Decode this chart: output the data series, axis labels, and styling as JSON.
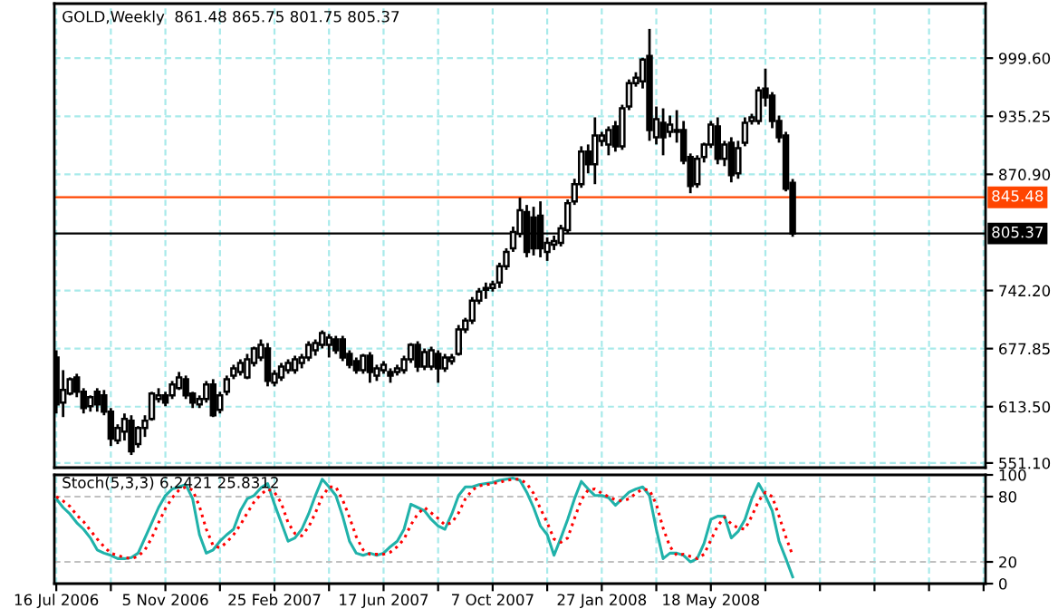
{
  "chart_data": [
    {
      "type": "candlestick",
      "title": "GOLD,Weekly  861.48 865.75 801.75 805.37",
      "x": [
        "2006-07-16",
        "2006-07-23",
        "2006-07-30",
        "2006-08-06",
        "2006-08-13",
        "2006-08-20",
        "2006-08-27",
        "2006-09-03",
        "2006-09-10",
        "2006-09-17",
        "2006-09-24",
        "2006-10-01",
        "2006-10-08",
        "2006-10-15",
        "2006-10-22",
        "2006-10-29",
        "2006-11-05",
        "2006-11-12",
        "2006-11-19",
        "2006-11-26",
        "2006-12-03",
        "2006-12-10",
        "2006-12-17",
        "2006-12-24",
        "2006-12-31",
        "2007-01-07",
        "2007-01-14",
        "2007-01-21",
        "2007-01-28",
        "2007-02-04",
        "2007-02-11",
        "2007-02-18",
        "2007-02-25",
        "2007-03-04",
        "2007-03-11",
        "2007-03-18",
        "2007-03-25",
        "2007-04-01",
        "2007-04-08",
        "2007-04-15",
        "2007-04-22",
        "2007-04-29",
        "2007-05-06",
        "2007-05-13",
        "2007-05-20",
        "2007-05-27",
        "2007-06-03",
        "2007-06-10",
        "2007-06-17",
        "2007-06-24",
        "2007-07-01",
        "2007-07-08",
        "2007-07-15",
        "2007-07-22",
        "2007-07-29",
        "2007-08-05",
        "2007-08-12",
        "2007-08-19",
        "2007-08-26",
        "2007-09-02",
        "2007-09-09",
        "2007-09-16",
        "2007-09-23",
        "2007-09-30",
        "2007-10-07",
        "2007-10-14",
        "2007-10-21",
        "2007-10-28",
        "2007-11-04",
        "2007-11-11",
        "2007-11-18",
        "2007-11-25",
        "2007-12-02",
        "2007-12-09",
        "2007-12-16",
        "2007-12-23",
        "2007-12-30",
        "2008-01-06",
        "2008-01-13",
        "2008-01-20",
        "2008-01-27",
        "2008-02-03",
        "2008-02-10",
        "2008-02-17",
        "2008-02-24",
        "2008-03-02",
        "2008-03-09",
        "2008-03-16",
        "2008-03-23",
        "2008-03-30",
        "2008-04-06",
        "2008-04-13",
        "2008-04-20",
        "2008-04-27",
        "2008-05-04",
        "2008-05-11",
        "2008-05-18",
        "2008-05-25",
        "2008-06-01",
        "2008-06-08",
        "2008-06-15",
        "2008-06-22",
        "2008-06-29",
        "2008-07-06",
        "2008-07-13",
        "2008-07-20",
        "2008-07-27",
        "2008-08-03",
        "2008-08-10"
      ],
      "ohlc": [
        [
          668,
          676,
          606,
          616
        ],
        [
          618,
          654,
          602,
          632
        ],
        [
          628,
          646,
          626,
          644
        ],
        [
          646,
          650,
          624,
          630
        ],
        [
          630,
          634,
          606,
          612
        ],
        [
          614,
          626,
          608,
          624
        ],
        [
          630,
          634,
          608,
          616
        ],
        [
          626,
          632,
          604,
          608
        ],
        [
          608,
          612,
          570,
          578
        ],
        [
          576,
          594,
          572,
          590
        ],
        [
          586,
          606,
          576,
          600
        ],
        [
          598,
          604,
          560,
          564
        ],
        [
          572,
          592,
          568,
          590
        ],
        [
          590,
          604,
          580,
          598
        ],
        [
          600,
          630,
          598,
          628
        ],
        [
          622,
          634,
          618,
          626
        ],
        [
          626,
          630,
          614,
          618
        ],
        [
          626,
          642,
          622,
          638
        ],
        [
          634,
          652,
          632,
          646
        ],
        [
          644,
          648,
          622,
          626
        ],
        [
          628,
          630,
          612,
          618
        ],
        [
          616,
          626,
          612,
          622
        ],
        [
          622,
          642,
          618,
          638
        ],
        [
          638,
          644,
          602,
          604
        ],
        [
          610,
          630,
          606,
          626
        ],
        [
          630,
          648,
          626,
          644
        ],
        [
          648,
          660,
          644,
          656
        ],
        [
          652,
          666,
          648,
          662
        ],
        [
          646,
          672,
          644,
          666
        ],
        [
          662,
          680,
          658,
          678
        ],
        [
          668,
          688,
          664,
          682
        ],
        [
          678,
          684,
          636,
          642
        ],
        [
          640,
          654,
          636,
          650
        ],
        [
          646,
          662,
          642,
          658
        ],
        [
          654,
          666,
          650,
          662
        ],
        [
          654,
          670,
          650,
          666
        ],
        [
          662,
          672,
          656,
          668
        ],
        [
          668,
          686,
          664,
          682
        ],
        [
          676,
          688,
          670,
          684
        ],
        [
          682,
          698,
          678,
          695
        ],
        [
          682,
          694,
          668,
          690
        ],
        [
          688,
          692,
          672,
          676
        ],
        [
          688,
          692,
          664,
          668
        ],
        [
          672,
          676,
          656,
          660
        ],
        [
          664,
          668,
          650,
          654
        ],
        [
          654,
          672,
          650,
          670
        ],
        [
          670,
          674,
          640,
          652
        ],
        [
          648,
          660,
          642,
          656
        ],
        [
          654,
          664,
          650,
          660
        ],
        [
          652,
          656,
          640,
          648
        ],
        [
          652,
          660,
          648,
          656
        ],
        [
          654,
          670,
          650,
          666
        ],
        [
          666,
          684,
          662,
          682
        ],
        [
          682,
          686,
          652,
          658
        ],
        [
          658,
          678,
          654,
          674
        ],
        [
          658,
          680,
          654,
          676
        ],
        [
          672,
          676,
          640,
          656
        ],
        [
          656,
          672,
          652,
          668
        ],
        [
          664,
          672,
          660,
          668
        ],
        [
          672,
          704,
          670,
          699
        ],
        [
          699,
          712,
          695,
          709
        ],
        [
          709,
          735,
          705,
          731
        ],
        [
          731,
          745,
          727,
          741
        ],
        [
          743,
          751,
          733,
          745
        ],
        [
          745,
          753,
          741,
          749
        ],
        [
          751,
          773,
          745,
          769
        ],
        [
          769,
          789,
          765,
          785
        ],
        [
          789,
          813,
          785,
          807
        ],
        [
          805,
          845,
          801,
          831
        ],
        [
          829,
          837,
          779,
          785
        ],
        [
          823,
          835,
          781,
          789
        ],
        [
          825,
          841,
          779,
          789
        ],
        [
          785,
          801,
          775,
          795
        ],
        [
          793,
          803,
          787,
          797
        ],
        [
          795,
          815,
          791,
          811
        ],
        [
          809,
          843,
          805,
          839
        ],
        [
          841,
          866,
          837,
          860
        ],
        [
          860,
          902,
          856,
          896
        ],
        [
          896,
          904,
          872,
          882
        ],
        [
          882,
          934,
          860,
          914
        ],
        [
          908,
          918,
          902,
          914
        ],
        [
          904,
          924,
          892,
          920
        ],
        [
          924,
          930,
          896,
          902
        ],
        [
          902,
          948,
          898,
          944
        ],
        [
          946,
          976,
          942,
          972
        ],
        [
          972,
          984,
          968,
          978
        ],
        [
          974,
          1000,
          966,
          998
        ],
        [
          1002,
          1032,
          908,
          920
        ],
        [
          912,
          946,
          904,
          932
        ],
        [
          928,
          944,
          892,
          912
        ],
        [
          918,
          936,
          912,
          926
        ],
        [
          918,
          942,
          906,
          920
        ],
        [
          920,
          930,
          882,
          886
        ],
        [
          890,
          894,
          850,
          858
        ],
        [
          860,
          892,
          856,
          888
        ],
        [
          890,
          906,
          884,
          904
        ],
        [
          904,
          930,
          900,
          926
        ],
        [
          924,
          934,
          882,
          888
        ],
        [
          888,
          908,
          880,
          904
        ],
        [
          906,
          912,
          862,
          870
        ],
        [
          872,
          908,
          866,
          900
        ],
        [
          906,
          934,
          902,
          928
        ],
        [
          930,
          938,
          926,
          934
        ],
        [
          930,
          968,
          926,
          964
        ],
        [
          966,
          988,
          946,
          956
        ],
        [
          958,
          962,
          922,
          930
        ],
        [
          930,
          936,
          906,
          912
        ],
        [
          914,
          918,
          852,
          855
        ],
        [
          861.48,
          865.75,
          801.75,
          805.37
        ]
      ],
      "xlim": [
        "2006-07-14",
        "2009-02-24"
      ],
      "xticks": [
        {
          "value": "2006-07-16",
          "label": null
        },
        {
          "value": "2006-09-10",
          "label": null
        },
        {
          "value": "2006-11-05",
          "label": null
        },
        {
          "value": "2006-12-31",
          "label": null
        },
        {
          "value": "2007-02-25",
          "label": null
        },
        {
          "value": "2007-04-22",
          "label": null
        },
        {
          "value": "2007-06-17",
          "label": null
        },
        {
          "value": "2007-08-12",
          "label": null
        },
        {
          "value": "2007-10-07",
          "label": null
        },
        {
          "value": "2007-12-02",
          "label": null
        },
        {
          "value": "2008-01-27",
          "label": null
        },
        {
          "value": "2008-03-23",
          "label": null
        },
        {
          "value": "2008-05-18",
          "label": null
        },
        {
          "value": "2008-07-13",
          "label": null
        },
        {
          "value": "2008-09-07",
          "label": null
        },
        {
          "value": "2008-11-02",
          "label": null
        },
        {
          "value": "2008-12-28",
          "label": null
        },
        {
          "value": "2009-02-22",
          "label": null
        }
      ],
      "ylim": [
        546,
        1060
      ],
      "yticks": [
        {
          "value": 551.1,
          "label": "551.10"
        },
        {
          "value": 613.5,
          "label": "613.50"
        },
        {
          "value": 677.85,
          "label": "677.85"
        },
        {
          "value": 742.2,
          "label": "742.20"
        },
        {
          "value": 870.9,
          "label": "870.90"
        },
        {
          "value": 935.25,
          "label": "935.25"
        },
        {
          "value": 999.6,
          "label": "999.60"
        }
      ],
      "ref_lines": [
        {
          "axis": "y",
          "value": 845.48,
          "label": "845.48",
          "color": "#ff4500"
        },
        {
          "axis": "y",
          "value": 805.37,
          "label": "805.37",
          "color": "#000000"
        }
      ],
      "grid": true,
      "tick_labels": "y"
    },
    {
      "type": "line",
      "title": "Stoch(5,3,3) 6.2421 25.8312",
      "x": [
        "2006-07-16",
        "2006-07-23",
        "2006-07-30",
        "2006-08-06",
        "2006-08-13",
        "2006-08-20",
        "2006-08-27",
        "2006-09-03",
        "2006-09-10",
        "2006-09-17",
        "2006-09-24",
        "2006-10-01",
        "2006-10-08",
        "2006-10-15",
        "2006-10-22",
        "2006-10-29",
        "2006-11-05",
        "2006-11-12",
        "2006-11-19",
        "2006-11-26",
        "2006-12-03",
        "2006-12-10",
        "2006-12-17",
        "2006-12-24",
        "2006-12-31",
        "2007-01-07",
        "2007-01-14",
        "2007-01-21",
        "2007-01-28",
        "2007-02-04",
        "2007-02-11",
        "2007-02-18",
        "2007-02-25",
        "2007-03-04",
        "2007-03-11",
        "2007-03-18",
        "2007-03-25",
        "2007-04-01",
        "2007-04-08",
        "2007-04-15",
        "2007-04-22",
        "2007-04-29",
        "2007-05-06",
        "2007-05-13",
        "2007-05-20",
        "2007-05-27",
        "2007-06-03",
        "2007-06-10",
        "2007-06-17",
        "2007-06-24",
        "2007-07-01",
        "2007-07-08",
        "2007-07-15",
        "2007-07-22",
        "2007-07-29",
        "2007-08-05",
        "2007-08-12",
        "2007-08-19",
        "2007-08-26",
        "2007-09-02",
        "2007-09-09",
        "2007-09-16",
        "2007-09-23",
        "2007-09-30",
        "2007-10-07",
        "2007-10-14",
        "2007-10-21",
        "2007-10-28",
        "2007-11-04",
        "2007-11-11",
        "2007-11-18",
        "2007-11-25",
        "2007-12-02",
        "2007-12-09",
        "2007-12-16",
        "2007-12-23",
        "2007-12-30",
        "2008-01-06",
        "2008-01-13",
        "2008-01-20",
        "2008-01-27",
        "2008-02-03",
        "2008-02-10",
        "2008-02-17",
        "2008-02-24",
        "2008-03-02",
        "2008-03-09",
        "2008-03-16",
        "2008-03-23",
        "2008-03-30",
        "2008-04-06",
        "2008-04-13",
        "2008-04-20",
        "2008-04-27",
        "2008-05-04",
        "2008-05-11",
        "2008-05-18",
        "2008-05-25",
        "2008-06-01",
        "2008-06-08",
        "2008-06-15",
        "2008-06-22",
        "2008-06-29",
        "2008-07-06",
        "2008-07-13",
        "2008-07-20",
        "2008-07-27",
        "2008-08-03",
        "2008-08-10"
      ],
      "series": [
        {
          "color": "#20b2aa",
          "line_style": "solid",
          "values": [
            78,
            70,
            64,
            56,
            50,
            42,
            31,
            28,
            26,
            23,
            23,
            24,
            28,
            42,
            56,
            70,
            81,
            87,
            89,
            91,
            78,
            45,
            28,
            31,
            39,
            45,
            50,
            67,
            78,
            81,
            88,
            92,
            73,
            56,
            39,
            42,
            50,
            64,
            81,
            96,
            89,
            81,
            62,
            39,
            28,
            26,
            28,
            26,
            28,
            34,
            39,
            50,
            73,
            70,
            67,
            59,
            53,
            50,
            64,
            81,
            89,
            89,
            91,
            92,
            93,
            95,
            96,
            97,
            95,
            84,
            70,
            53,
            45,
            26,
            42,
            59,
            78,
            94,
            87,
            81,
            81,
            79,
            72,
            78,
            84,
            87,
            89,
            81,
            50,
            23,
            28,
            28,
            26,
            20,
            23,
            37,
            59,
            62,
            62,
            42,
            48,
            59,
            78,
            92,
            81,
            67,
            39,
            23,
            6.2421
          ]
        },
        {
          "color": "#ff0000",
          "line_style": "dotted",
          "values": [
            80,
            76,
            71,
            63,
            57,
            49,
            41,
            34,
            28,
            26,
            24,
            23,
            25,
            31,
            42,
            56,
            69,
            79,
            86,
            89,
            86,
            71,
            50,
            35,
            33,
            38,
            45,
            54,
            65,
            75,
            82,
            87,
            84,
            74,
            56,
            46,
            44,
            52,
            65,
            80,
            89,
            89,
            77,
            61,
            43,
            31,
            27,
            27,
            27,
            29,
            34,
            41,
            54,
            64,
            70,
            65,
            60,
            54,
            56,
            65,
            78,
            86,
            90,
            91,
            92,
            93,
            95,
            96,
            96,
            92,
            83,
            69,
            56,
            41,
            38,
            42,
            60,
            77,
            86,
            87,
            83,
            80,
            77,
            76,
            78,
            83,
            87,
            86,
            73,
            51,
            34,
            26,
            27,
            25,
            23,
            27,
            40,
            53,
            61,
            55,
            51,
            50,
            62,
            76,
            84,
            80,
            62,
            43,
            25.8312
          ]
        }
      ],
      "xlim": [
        "2006-07-14",
        "2009-02-24"
      ],
      "xticks": [
        {
          "value": "2006-07-16",
          "label": "16 Jul 2006"
        },
        {
          "value": "2006-09-10",
          "label": null
        },
        {
          "value": "2006-11-05",
          "label": "5 Nov 2006"
        },
        {
          "value": "2006-12-31",
          "label": null
        },
        {
          "value": "2007-02-25",
          "label": "25 Feb 2007"
        },
        {
          "value": "2007-04-22",
          "label": null
        },
        {
          "value": "2007-06-17",
          "label": "17 Jun 2007"
        },
        {
          "value": "2007-08-12",
          "label": null
        },
        {
          "value": "2007-10-07",
          "label": "7 Oct 2007"
        },
        {
          "value": "2007-12-02",
          "label": null
        },
        {
          "value": "2008-01-27",
          "label": "27 Jan 2008"
        },
        {
          "value": "2008-03-23",
          "label": null
        },
        {
          "value": "2008-05-18",
          "label": "18 May 2008"
        },
        {
          "value": "2008-07-13",
          "label": null
        },
        {
          "value": "2008-09-07",
          "label": null
        },
        {
          "value": "2008-11-02",
          "label": null
        },
        {
          "value": "2008-12-28",
          "label": null
        },
        {
          "value": "2009-02-22",
          "label": null
        }
      ],
      "ylim": [
        0,
        100
      ],
      "yticks": [
        0,
        20,
        80,
        100
      ],
      "grid": true
    }
  ]
}
